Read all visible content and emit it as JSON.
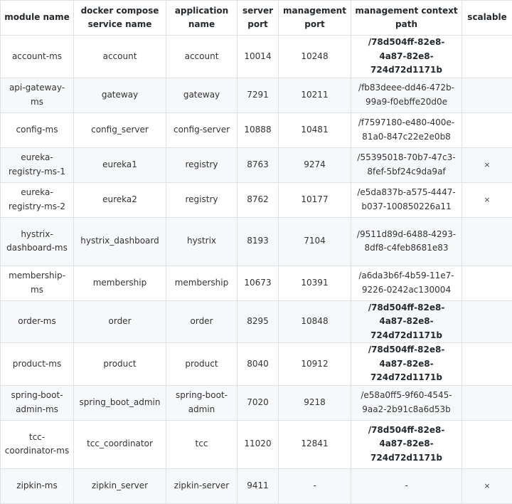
{
  "headers": [
    "module name",
    "docker compose service name",
    "application name",
    "server port",
    "management port",
    "management context path",
    "scalable"
  ],
  "rows": [
    {
      "module": "account-ms",
      "service": "account",
      "app": "account",
      "server_port": "10014",
      "mgmt_port": "10248",
      "path": "/78d504ff-82e8-4a87-82e8-724d72d1171b",
      "path_bold": true,
      "scalable": ""
    },
    {
      "module": "api-gateway-ms",
      "service": "gateway",
      "app": "gateway",
      "server_port": "7291",
      "mgmt_port": "10211",
      "path": "/fb83deee-dd46-472b-99a9-f0ebffe20d0e",
      "path_bold": false,
      "scalable": ""
    },
    {
      "module": "config-ms",
      "service": "config_server",
      "app": "config-server",
      "server_port": "10888",
      "mgmt_port": "10481",
      "path": "/f7597180-e480-400e-81a0-847c22e2e0b8",
      "path_bold": false,
      "scalable": ""
    },
    {
      "module": "eureka-registry-ms-1",
      "service": "eureka1",
      "app": "registry",
      "server_port": "8763",
      "mgmt_port": "9274",
      "path": "/55395018-70b7-47c3-8fef-5bf24c9da9af",
      "path_bold": false,
      "scalable": "×"
    },
    {
      "module": "eureka-registry-ms-2",
      "service": "eureka2",
      "app": "registry",
      "server_port": "8762",
      "mgmt_port": "10177",
      "path": "/e5da837b-a575-4447-b037-100850226a11",
      "path_bold": false,
      "scalable": "×"
    },
    {
      "module": "hystrix-dashboard-ms",
      "service": "hystrix_dashboard",
      "app": "hystrix",
      "server_port": "8193",
      "mgmt_port": "7104",
      "path": "/9511d89d-6488-4293-8df8-c4feb8681e83",
      "path_bold": false,
      "scalable": ""
    },
    {
      "module": "membership-ms",
      "service": "membership",
      "app": "membership",
      "server_port": "10673",
      "mgmt_port": "10391",
      "path": "/a6da3b6f-4b59-11e7-9226-0242ac130004",
      "path_bold": false,
      "scalable": ""
    },
    {
      "module": "order-ms",
      "service": "order",
      "app": "order",
      "server_port": "8295",
      "mgmt_port": "10848",
      "path": "/78d504ff-82e8-4a87-82e8-724d72d1171b",
      "path_bold": true,
      "scalable": ""
    },
    {
      "module": "product-ms",
      "service": "product",
      "app": "product",
      "server_port": "8040",
      "mgmt_port": "10912",
      "path": "/78d504ff-82e8-4a87-82e8-724d72d1171b",
      "path_bold": true,
      "scalable": ""
    },
    {
      "module": "spring-boot-admin-ms",
      "service": "spring_boot_admin",
      "app": "spring-boot-admin",
      "server_port": "7020",
      "mgmt_port": "9218",
      "path": "/e58a0ff5-9f60-4545-9aa2-2b91c8a6d53b",
      "path_bold": false,
      "scalable": ""
    },
    {
      "module": "tcc-coordinator-ms",
      "service": "tcc_coordinator",
      "app": "tcc",
      "server_port": "11020",
      "mgmt_port": "12841",
      "path": "/78d504ff-82e8-4a87-82e8-724d72d1171b",
      "path_bold": true,
      "scalable": ""
    },
    {
      "module": "zipkin-ms",
      "service": "zipkin_server",
      "app": "zipkin-server",
      "server_port": "9411",
      "mgmt_port": "-",
      "path": "-",
      "path_bold": false,
      "scalable": "×"
    }
  ]
}
